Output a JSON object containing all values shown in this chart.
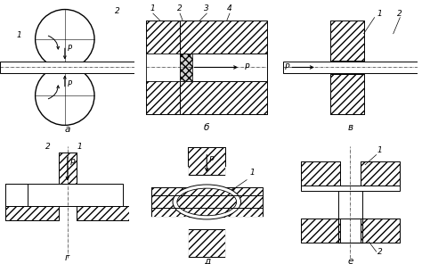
{
  "background_color": "#ffffff",
  "subfig_labels": [
    "а",
    "б",
    "в",
    "г",
    "д",
    "е"
  ]
}
